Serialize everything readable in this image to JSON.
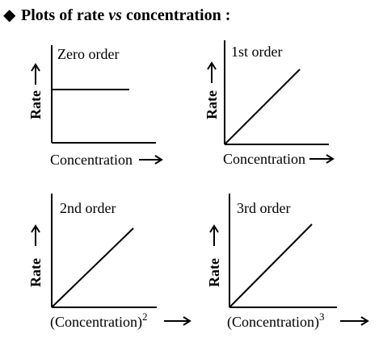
{
  "heading": {
    "bullet": "◆",
    "before": "Plots of rate ",
    "italic": "vs",
    "after": " concentration :"
  },
  "panels": [
    {
      "title": "Zero order",
      "ylabel": "Rate",
      "xlabel": "Concentration",
      "xexp": "",
      "line": "constant"
    },
    {
      "title": "1st order",
      "ylabel": "Rate",
      "xlabel": "Concentration",
      "xexp": "",
      "line": "linear"
    },
    {
      "title": "2nd order",
      "ylabel": "Rate",
      "xlabel": "(Concentration)",
      "xexp": "2",
      "line": "linear"
    },
    {
      "title": "3rd order",
      "ylabel": "Rate",
      "xlabel": "(Concentration)",
      "xexp": "3",
      "line": "linear"
    }
  ]
}
